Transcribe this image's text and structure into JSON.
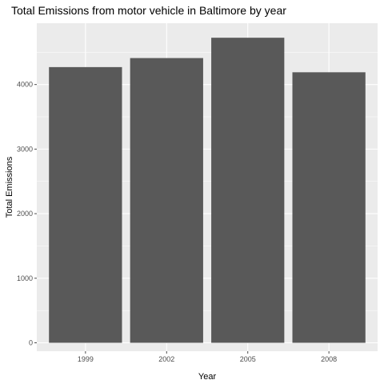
{
  "chart_data": {
    "type": "bar",
    "title": "Total Emissions from motor vehicle in Baltimore by year",
    "xlabel": "Year",
    "ylabel": "Total Emissions",
    "categories": [
      "1999",
      "2002",
      "2005",
      "2008"
    ],
    "values": [
      4270,
      4410,
      4725,
      4190
    ],
    "ylim": [
      0,
      4950
    ],
    "yticks": [
      0,
      1000,
      2000,
      3000,
      4000
    ],
    "grid": true,
    "legend": "none"
  },
  "colors": {
    "panel": "#ebebeb",
    "grid": "#ffffff",
    "bar": "#595959",
    "tick": "#4d4d4d",
    "text": "#000000"
  }
}
